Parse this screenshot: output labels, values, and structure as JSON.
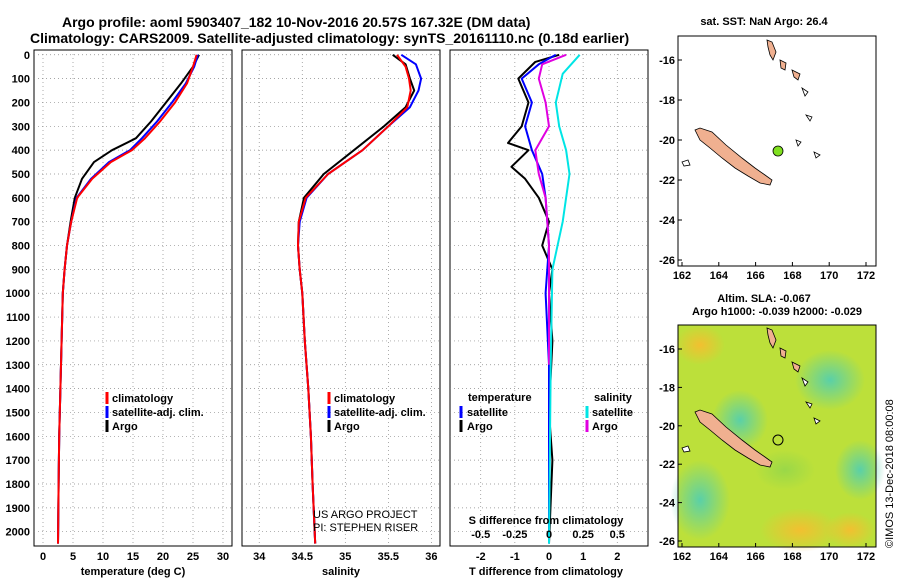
{
  "header": {
    "line1": "Argo profile: aoml 5903407_182 10-Nov-2016 20.57S 167.32E (DM data)",
    "line2": "Climatology: CARS2009. Satellite-adjusted climatology: synTS_20161110.nc (0.18d earlier)"
  },
  "colors": {
    "climatology": "#ff0000",
    "satellite": "#0000ff",
    "argo": "#000000",
    "salinity_sat": "#00e5e5",
    "salinity_argo": "#e000e0",
    "land": "#f0b090"
  },
  "depth_axis": {
    "ticks": [
      0,
      100,
      200,
      300,
      400,
      500,
      600,
      700,
      800,
      900,
      1000,
      1100,
      1200,
      1300,
      1400,
      1500,
      1600,
      1700,
      1800,
      1900,
      2000
    ]
  },
  "chart_data": [
    {
      "type": "line",
      "xlabel": "temperature (deg C)",
      "xticks": [
        0,
        5,
        10,
        15,
        20,
        25,
        30
      ],
      "xlim": [
        -1.5,
        31.5
      ],
      "ylim": [
        2060,
        -20
      ],
      "legend": {
        "climatology": "climatology",
        "satellite": "satellite-adj. clim.",
        "argo": "Argo"
      },
      "series": [
        {
          "key": "argo",
          "points": [
            [
              26,
              0
            ],
            [
              25,
              50
            ],
            [
              23,
              120
            ],
            [
              20.5,
              200
            ],
            [
              18,
              280
            ],
            [
              15.5,
              350
            ],
            [
              11.5,
              400
            ],
            [
              8.5,
              450
            ],
            [
              6.5,
              520
            ],
            [
              5.3,
              600
            ],
            [
              4.6,
              700
            ],
            [
              4,
              800
            ],
            [
              3.6,
              900
            ],
            [
              3.3,
              1000
            ],
            [
              3.1,
              1200
            ],
            [
              2.9,
              1400
            ],
            [
              2.7,
              1600
            ],
            [
              2.6,
              1800
            ],
            [
              2.5,
              2050
            ]
          ]
        },
        {
          "key": "satellite",
          "points": [
            [
              25.8,
              0
            ],
            [
              25.2,
              50
            ],
            [
              23.8,
              120
            ],
            [
              21.5,
              200
            ],
            [
              19,
              280
            ],
            [
              16.5,
              350
            ],
            [
              14.5,
              400
            ],
            [
              11,
              450
            ],
            [
              8,
              520
            ],
            [
              5.6,
              600
            ],
            [
              4.7,
              700
            ],
            [
              4,
              800
            ],
            [
              3.6,
              900
            ],
            [
              3.3,
              1000
            ],
            [
              3.1,
              1200
            ],
            [
              2.9,
              1400
            ],
            [
              2.7,
              1600
            ],
            [
              2.6,
              1800
            ],
            [
              2.5,
              2050
            ]
          ]
        },
        {
          "key": "climatology",
          "points": [
            [
              25.6,
              0
            ],
            [
              25,
              50
            ],
            [
              24,
              120
            ],
            [
              22,
              200
            ],
            [
              19.5,
              280
            ],
            [
              17,
              350
            ],
            [
              14.8,
              400
            ],
            [
              11.3,
              450
            ],
            [
              8.2,
              520
            ],
            [
              5.7,
              600
            ],
            [
              4.7,
              700
            ],
            [
              4,
              800
            ],
            [
              3.6,
              900
            ],
            [
              3.3,
              1000
            ],
            [
              3.1,
              1200
            ],
            [
              2.9,
              1400
            ],
            [
              2.7,
              1600
            ],
            [
              2.6,
              1800
            ],
            [
              2.5,
              2050
            ]
          ]
        }
      ]
    },
    {
      "type": "line",
      "xlabel": "salinity",
      "xticks": [
        34,
        34.5,
        35,
        35.5,
        36
      ],
      "xlim": [
        33.8,
        36.1
      ],
      "ylim": [
        2060,
        -20
      ],
      "legend": {
        "climatology": "climatology",
        "satellite": "satellite-adj. clim.",
        "argo": "Argo"
      },
      "series": [
        {
          "key": "argo",
          "points": [
            [
              35.55,
              0
            ],
            [
              35.7,
              40
            ],
            [
              35.75,
              100
            ],
            [
              35.8,
              150
            ],
            [
              35.7,
              220
            ],
            [
              35.45,
              300
            ],
            [
              35.1,
              400
            ],
            [
              34.75,
              500
            ],
            [
              34.52,
              600
            ],
            [
              34.46,
              700
            ],
            [
              34.45,
              800
            ],
            [
              34.47,
              900
            ],
            [
              34.5,
              1000
            ],
            [
              34.53,
              1200
            ],
            [
              34.57,
              1400
            ],
            [
              34.6,
              1600
            ],
            [
              34.62,
              1800
            ],
            [
              34.65,
              2050
            ]
          ]
        },
        {
          "key": "satellite",
          "points": [
            [
              35.65,
              0
            ],
            [
              35.82,
              40
            ],
            [
              35.88,
              100
            ],
            [
              35.85,
              150
            ],
            [
              35.75,
              220
            ],
            [
              35.5,
              300
            ],
            [
              35.2,
              400
            ],
            [
              34.8,
              500
            ],
            [
              34.55,
              600
            ],
            [
              34.47,
              700
            ],
            [
              34.45,
              800
            ],
            [
              34.47,
              900
            ],
            [
              34.5,
              1000
            ],
            [
              34.53,
              1200
            ],
            [
              34.57,
              1400
            ],
            [
              34.6,
              1600
            ],
            [
              34.62,
              1800
            ],
            [
              34.65,
              2050
            ]
          ]
        },
        {
          "key": "climatology",
          "points": [
            [
              35.6,
              0
            ],
            [
              35.7,
              50
            ],
            [
              35.74,
              100
            ],
            [
              35.76,
              150
            ],
            [
              35.72,
              220
            ],
            [
              35.5,
              300
            ],
            [
              35.2,
              400
            ],
            [
              34.8,
              500
            ],
            [
              34.54,
              600
            ],
            [
              34.46,
              700
            ],
            [
              34.45,
              800
            ],
            [
              34.47,
              900
            ],
            [
              34.5,
              1000
            ],
            [
              34.53,
              1200
            ],
            [
              34.57,
              1400
            ],
            [
              34.6,
              1600
            ],
            [
              34.62,
              1800
            ],
            [
              34.65,
              2050
            ]
          ]
        }
      ]
    },
    {
      "type": "line",
      "xlabel": "T difference from climatology",
      "title_bottom": "S difference from climatology",
      "xticks": [
        -2,
        -1,
        0,
        1,
        2
      ],
      "s_ticks": [
        "-0.5",
        "-0.25",
        "0",
        "0.25",
        "0.5"
      ],
      "xlim": [
        -2.9,
        2.9
      ],
      "ylim": [
        2060,
        -20
      ],
      "legend": {
        "temperature": "temperature",
        "salinity": "salinity",
        "satellite": "satellite",
        "argo": "Argo"
      },
      "series": [
        {
          "key": "argo",
          "points": [
            [
              0.3,
              0
            ],
            [
              -0.4,
              30
            ],
            [
              -0.9,
              100
            ],
            [
              -0.6,
              200
            ],
            [
              -0.8,
              300
            ],
            [
              -1.2,
              370
            ],
            [
              -0.6,
              400
            ],
            [
              -1.1,
              470
            ],
            [
              -0.7,
              520
            ],
            [
              -0.3,
              600
            ],
            [
              0,
              700
            ],
            [
              -0.2,
              800
            ],
            [
              0.1,
              900
            ],
            [
              0,
              1000
            ],
            [
              0.1,
              1200
            ],
            [
              0,
              1500
            ],
            [
              0.1,
              1700
            ],
            [
              0,
              2050
            ]
          ]
        },
        {
          "key": "satellite",
          "points": [
            [
              0.2,
              0
            ],
            [
              -0.3,
              40
            ],
            [
              -0.8,
              100
            ],
            [
              -0.5,
              200
            ],
            [
              -0.7,
              300
            ],
            [
              -0.5,
              400
            ],
            [
              -0.2,
              500
            ],
            [
              -0.1,
              600
            ],
            [
              0,
              800
            ],
            [
              -0.1,
              1000
            ],
            [
              0,
              1300
            ],
            [
              0,
              2050
            ]
          ]
        },
        {
          "key": "salinity_argo",
          "points": [
            [
              0.5,
              0
            ],
            [
              -0.2,
              40
            ],
            [
              -0.3,
              100
            ],
            [
              -0.1,
              200
            ],
            [
              0,
              300
            ],
            [
              -0.4,
              400
            ],
            [
              -0.3,
              500
            ],
            [
              -0.1,
              600
            ],
            [
              0,
              800
            ],
            [
              0,
              1000
            ],
            [
              0,
              1300
            ]
          ]
        },
        {
          "key": "salinity_sat",
          "points": [
            [
              0.9,
              0
            ],
            [
              0.4,
              80
            ],
            [
              0.2,
              200
            ],
            [
              0.3,
              300
            ],
            [
              0.5,
              400
            ],
            [
              0.6,
              500
            ],
            [
              0.4,
              700
            ],
            [
              0.1,
              900
            ],
            [
              0.05,
              1300
            ],
            [
              0,
              2050
            ]
          ]
        }
      ]
    }
  ],
  "map_top": {
    "title": "sat. SST: NaN Argo: 26.4",
    "xticks": [
      "162",
      "164",
      "166",
      "168",
      "170",
      "172"
    ],
    "yticks": [
      "-16",
      "-18",
      "-20",
      "-22",
      "-24",
      "-26"
    ]
  },
  "map_bottom": {
    "title1": "Altim. SLA: -0.067",
    "title2": "Argo h1000: -0.039 h2000: -0.029",
    "xticks": [
      "162",
      "164",
      "166",
      "168",
      "170",
      "172"
    ],
    "yticks": [
      "-16",
      "-18",
      "-20",
      "-22",
      "-24",
      "-26"
    ]
  },
  "credits": {
    "project": "US ARGO PROJECT",
    "pi": "PI: STEPHEN RISER",
    "imos": "©IMOS 13-Dec-2018 08:00:08"
  }
}
